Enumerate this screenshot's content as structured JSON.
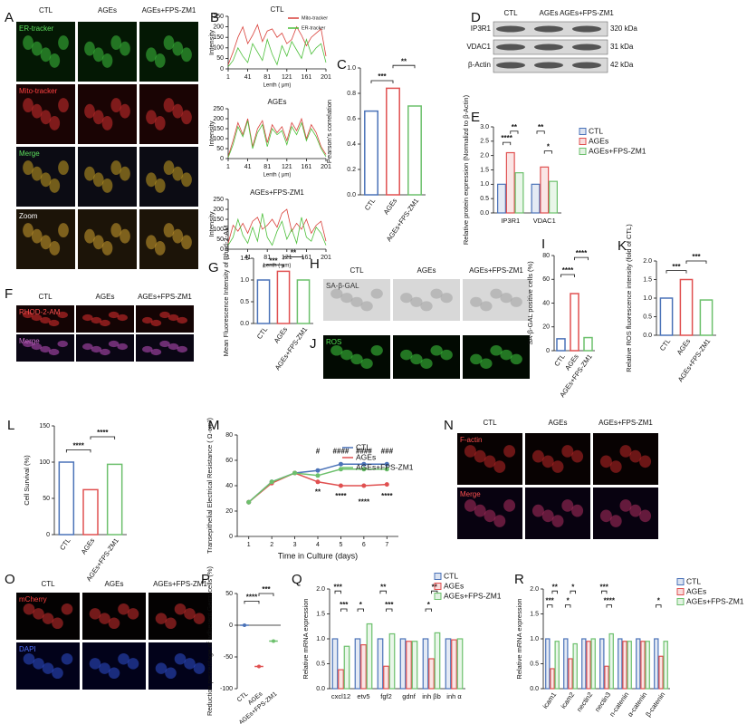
{
  "panels": [
    {
      "label": "A",
      "columns": [
        "CTL",
        "AGEs",
        "AGEs+FPS-ZM1"
      ],
      "rows": [
        "ER-tracker",
        "Mito-tracker",
        "Merge",
        "Zoom"
      ]
    },
    {
      "label": "D",
      "columns": [
        "CTL",
        "AGEs",
        "AGEs+FPS-ZM1"
      ],
      "rows": [
        "IP3R1",
        "VDAC1",
        "β-Actin"
      ],
      "sizes": [
        "320 kDa",
        "31 kDa",
        "42 kDa"
      ]
    },
    {
      "label": "F",
      "columns": [
        "CTL",
        "AGEs",
        "AGEs+FPS-ZM1"
      ],
      "rows": [
        "RHOD-2-AM",
        "Merge"
      ]
    },
    {
      "label": "H",
      "columns": [
        "CTL",
        "AGEs",
        "AGEs+FPS-ZM1"
      ],
      "rows": [
        "SA-β-GAL"
      ]
    },
    {
      "label": "J",
      "rows": [
        "ROS"
      ]
    },
    {
      "label": "N",
      "columns": [
        "CTL",
        "AGEs",
        "AGEs+FPS-ZM1"
      ],
      "rows": [
        "F-actin",
        "Merge"
      ]
    },
    {
      "label": "O",
      "columns": [
        "CTL",
        "AGEs",
        "AGEs+FPS-ZM1"
      ],
      "rows": [
        "mCherry",
        "DAPI"
      ]
    }
  ],
  "chart_data": [
    {
      "type": "line",
      "label": "B",
      "title": "CTL",
      "y_label": "Intensity",
      "x_label": "Lenth ( μm)",
      "legend": true,
      "x": [
        1,
        11,
        21,
        31,
        41,
        51,
        61,
        71,
        81,
        91,
        101,
        111,
        121,
        131,
        141,
        151,
        161,
        171,
        181,
        191,
        201
      ],
      "xlim": [
        1,
        201
      ],
      "xticks": [
        1,
        41,
        81,
        121,
        161,
        201
      ],
      "ylim": [
        0,
        250
      ],
      "yticks": [
        0,
        50,
        100,
        150,
        200,
        250
      ],
      "series": [
        {
          "name": "Mito-tracker",
          "color": "#d9403a",
          "values": [
            20,
            80,
            150,
            200,
            120,
            160,
            210,
            130,
            180,
            190,
            150,
            170,
            120,
            140,
            200,
            160,
            110,
            150,
            170,
            190,
            60
          ]
        },
        {
          "name": "ER-tracker",
          "color": "#4cbf3a",
          "values": [
            10,
            40,
            100,
            60,
            30,
            120,
            80,
            40,
            140,
            70,
            20,
            110,
            60,
            130,
            90,
            50,
            140,
            70,
            100,
            120,
            30
          ]
        }
      ]
    },
    {
      "type": "line",
      "title": "AGEs",
      "y_label": "Intensity",
      "x_label": "Lenth ( μm)",
      "x": [
        1,
        11,
        21,
        31,
        41,
        51,
        61,
        71,
        81,
        91,
        101,
        111,
        121,
        131,
        141,
        151,
        161,
        171,
        181,
        191,
        201
      ],
      "xlim": [
        1,
        201
      ],
      "xticks": [
        1,
        41,
        81,
        121,
        161,
        201
      ],
      "ylim": [
        0,
        250
      ],
      "yticks": [
        0,
        50,
        100,
        150,
        200,
        250
      ],
      "series": [
        {
          "name": "Mito-tracker",
          "color": "#d9403a",
          "values": [
            10,
            90,
            180,
            120,
            200,
            60,
            150,
            190,
            80,
            170,
            130,
            160,
            90,
            180,
            140,
            200,
            100,
            170,
            130,
            60,
            20
          ]
        },
        {
          "name": "ER-tracker",
          "color": "#4cbf3a",
          "values": [
            5,
            70,
            160,
            110,
            190,
            50,
            130,
            170,
            60,
            150,
            120,
            140,
            70,
            160,
            120,
            180,
            90,
            150,
            110,
            50,
            10
          ]
        }
      ]
    },
    {
      "type": "line",
      "title": "AGEs+FPS-ZM1",
      "y_label": "Intensity",
      "x_label": "Lenth ( μm)",
      "x": [
        1,
        11,
        21,
        31,
        41,
        51,
        61,
        71,
        81,
        91,
        101,
        111,
        121,
        131,
        141,
        151,
        161,
        171,
        181,
        191,
        201
      ],
      "xlim": [
        1,
        201
      ],
      "xticks": [
        1,
        41,
        81,
        121,
        161,
        201
      ],
      "ylim": [
        0,
        250
      ],
      "yticks": [
        0,
        50,
        100,
        150,
        200,
        250
      ],
      "series": [
        {
          "name": "Mito-tracker",
          "color": "#d9403a",
          "values": [
            30,
            120,
            90,
            130,
            80,
            140,
            160,
            100,
            120,
            150,
            110,
            180,
            200,
            90,
            130,
            100,
            150,
            80,
            120,
            140,
            40
          ]
        },
        {
          "name": "ER-tracker",
          "color": "#4cbf3a",
          "values": [
            20,
            60,
            150,
            70,
            30,
            110,
            40,
            180,
            60,
            20,
            90,
            140,
            50,
            100,
            30,
            160,
            60,
            40,
            110,
            80,
            20
          ]
        }
      ]
    },
    {
      "type": "bar",
      "label": "C",
      "y_label": "Pearson's correlation",
      "categories": [
        "CTL",
        "AGEs",
        "AGEs+FPS-ZM1"
      ],
      "values": [
        0.66,
        0.84,
        0.7
      ],
      "colors": [
        "#4a72b8",
        "#e05050",
        "#6cc06c"
      ],
      "ylim": [
        0,
        1
      ],
      "yticks": [
        {
          "value": 0,
          "label": "0.0"
        },
        0.2,
        0.4,
        0.6,
        0.8,
        {
          "value": 1,
          "label": "1.0"
        }
      ],
      "annotations": [
        "***",
        "**"
      ]
    },
    {
      "type": "grouped_bar",
      "label": "E",
      "y_label": "Relative protein expression (Normalizd to  β-Actin)",
      "categories": [
        "IP3R1",
        "VDAC1"
      ],
      "series": [
        {
          "name": "CTL",
          "color": "#4a72b8",
          "values": [
            1,
            1
          ]
        },
        {
          "name": "AGEs",
          "color": "#e05050",
          "values": [
            2.1,
            1.6
          ]
        },
        {
          "name": "AGEs+FPS-ZM1",
          "color": "#6cc06c",
          "values": [
            1.4,
            1.1
          ]
        }
      ],
      "ylim": [
        0,
        3
      ],
      "yticks": [
        {
          "value": 0,
          "label": "0.0"
        },
        0.5,
        {
          "value": 1,
          "label": "1.0"
        },
        1.5,
        {
          "value": 2,
          "label": "2.0"
        },
        2.5,
        {
          "value": 3,
          "label": "3.0"
        }
      ],
      "annotations": [
        "****",
        "**",
        "**",
        "*"
      ],
      "legend": true
    },
    {
      "type": "bar",
      "label": "G",
      "y_label": "Mean Fluorescence Intensity of Rhod-2-AM",
      "categories": [
        "CTL",
        "AGEs",
        "AGEs+FPS-ZM1"
      ],
      "values": [
        1,
        1.2,
        1
      ],
      "colors": [
        "#4a72b8",
        "#e05050",
        "#6cc06c"
      ],
      "ylim": [
        0,
        1.5
      ],
      "yticks": [
        {
          "value": 0,
          "label": "0.0"
        },
        0.5,
        {
          "value": 1,
          "label": "1.0"
        },
        1.5
      ],
      "annotations": [
        "***",
        "**"
      ]
    },
    {
      "type": "bar",
      "label": "I",
      "y_label": "SA-β-GAL positive cells (%)",
      "categories": [
        "CTL",
        "AGEs",
        "AGEs+FPS-ZM1"
      ],
      "values": [
        10,
        48,
        11
      ],
      "colors": [
        "#4a72b8",
        "#e05050",
        "#6cc06c"
      ],
      "ylim": [
        0,
        80
      ],
      "yticks": [
        0,
        20,
        40,
        60,
        80
      ],
      "annotations": [
        "****",
        "****"
      ]
    },
    {
      "type": "bar",
      "label": "K",
      "y_label": "Relative ROS fluorescence intensity (fold of CTL)",
      "categories": [
        "CTL",
        "AGEs",
        "AGEs+FPS-ZM1"
      ],
      "values": [
        1,
        1.5,
        0.95
      ],
      "colors": [
        "#4a72b8",
        "#e05050",
        "#6cc06c"
      ],
      "ylim": [
        0,
        2
      ],
      "yticks": [
        {
          "value": 0,
          "label": "0.0"
        },
        0.5,
        {
          "value": 1,
          "label": "1.0"
        },
        1.5,
        {
          "value": 2,
          "label": "2.0"
        }
      ],
      "annotations": [
        "***",
        "***"
      ]
    },
    {
      "type": "bar",
      "label": "L",
      "y_label": "Cell Survival  (%)",
      "categories": [
        "CTL",
        "AGEs",
        "AGEs+FPS-ZM1"
      ],
      "values": [
        100,
        62,
        97
      ],
      "colors": [
        "#4a72b8",
        "#e05050",
        "#6cc06c"
      ],
      "ylim": [
        0,
        150
      ],
      "yticks": [
        0,
        50,
        100,
        150
      ],
      "annotations": [
        "****",
        "****"
      ]
    },
    {
      "type": "line",
      "label": "M",
      "y_label": "Transepithelial Electrical Resistance ( Ω·cm²)",
      "x_label": "Time in Culture (days)",
      "legend": true,
      "markers": true,
      "x": [
        1,
        2,
        3,
        4,
        5,
        6,
        7
      ],
      "xlim": [
        0.5,
        7.5
      ],
      "xticks": [
        1,
        2,
        3,
        4,
        5,
        6,
        7
      ],
      "ylim": [
        0,
        80
      ],
      "yticks": [
        0,
        20,
        40,
        60,
        80
      ],
      "series": [
        {
          "name": "CTL",
          "color": "#4a72b8",
          "values": [
            27,
            43,
            50,
            52,
            57,
            57,
            57
          ]
        },
        {
          "name": "AGEs",
          "color": "#e05050",
          "values": [
            27,
            42,
            50,
            43,
            40,
            40,
            41
          ]
        },
        {
          "name": "AGEs+FPS-ZM1",
          "color": "#6cc06c",
          "values": [
            27,
            43,
            50,
            48,
            53,
            53,
            53
          ]
        }
      ],
      "annotations": [
        "#",
        "####",
        "####",
        "###",
        "**",
        "****",
        "****",
        "****"
      ]
    },
    {
      "type": "dot",
      "label": "P",
      "y_label": "Reduction percentage of adherent Germ cells (%)",
      "categories": [
        "CTL",
        "AGEs",
        "AGEs+FPS-ZM1"
      ],
      "values": [
        0,
        -65,
        -25
      ],
      "colors": [
        "#4a72b8",
        "#e05050",
        "#6cc06c"
      ],
      "ylim": [
        -100,
        50
      ],
      "yticks": [
        -100,
        -50,
        0,
        50
      ],
      "annotations": [
        "****",
        "***"
      ]
    },
    {
      "type": "grouped_bar",
      "label": "Q",
      "y_label": "Relative mRNA expression",
      "categories": [
        "cxcl12",
        "etv5",
        "fgf2",
        "gdnf",
        "inh βb",
        "inh α"
      ],
      "series": [
        {
          "name": "CTL",
          "color": "#4a72b8",
          "values": [
            1,
            1,
            1,
            1,
            1,
            1
          ]
        },
        {
          "name": "AGEs",
          "color": "#e05050",
          "values": [
            0.38,
            0.88,
            0.45,
            0.95,
            0.6,
            0.98
          ]
        },
        {
          "name": "AGEs+FPS-ZM1",
          "color": "#6cc06c",
          "values": [
            0.85,
            1.3,
            1.1,
            0.95,
            1.12,
            1
          ]
        }
      ],
      "ylim": [
        0,
        2
      ],
      "yticks": [
        {
          "value": 0,
          "label": "0.0"
        },
        0.5,
        {
          "value": 1,
          "label": "1.0"
        },
        1.5,
        {
          "value": 2,
          "label": "2.0"
        }
      ],
      "annotations": [
        "***",
        "***",
        "*",
        "**",
        "***",
        "**",
        "*"
      ],
      "legend": true
    },
    {
      "type": "grouped_bar",
      "label": "R",
      "y_label": "Relative mRNA expression",
      "categories": [
        "icam1",
        "icam2",
        "nectin2",
        "nectin3",
        "n-catenin",
        "α-catenin",
        "β-catenin"
      ],
      "series": [
        {
          "name": "CTL",
          "color": "#4a72b8",
          "values": [
            1,
            1,
            1,
            1,
            1,
            1,
            1
          ]
        },
        {
          "name": "AGEs",
          "color": "#e05050",
          "values": [
            0.4,
            0.6,
            0.95,
            0.45,
            0.95,
            0.95,
            0.65
          ]
        },
        {
          "name": "AGEs+FPS-ZM1",
          "color": "#6cc06c",
          "values": [
            0.95,
            0.9,
            1,
            1.1,
            0.95,
            0.95,
            0.95
          ]
        }
      ],
      "ylim": [
        0,
        2
      ],
      "yticks": [
        {
          "value": 0,
          "label": "0.0"
        },
        0.5,
        {
          "value": 1,
          "label": "1.0"
        },
        1.5,
        {
          "value": 2,
          "label": "2.0"
        }
      ],
      "annotations": [
        "***",
        "**",
        "*",
        "*",
        "***",
        "****",
        "*"
      ],
      "legend": true
    }
  ]
}
